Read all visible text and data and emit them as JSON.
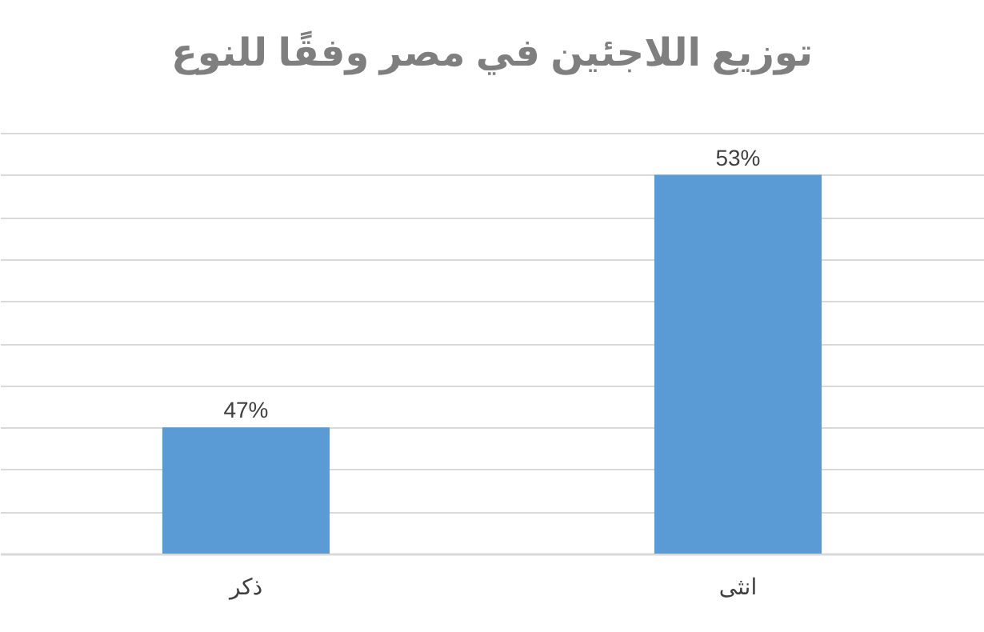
{
  "chart_data": {
    "type": "bar",
    "title": "توزيع اللاجئين في مصر وفقًا للنوع",
    "categories": [
      "ذكر",
      "انثى"
    ],
    "values": [
      47,
      53
    ],
    "value_labels": [
      "47%",
      "53%"
    ],
    "color": "#5b9bd5",
    "ylim": [
      44,
      54
    ],
    "yticks": [
      {
        "value": 44,
        "label": null
      },
      {
        "value": 45,
        "label": null
      },
      {
        "value": 46,
        "label": null
      },
      {
        "value": 47,
        "label": null
      },
      {
        "value": 48,
        "label": null
      },
      {
        "value": 49,
        "label": null
      },
      {
        "value": 50,
        "label": null
      },
      {
        "value": 51,
        "label": null
      },
      {
        "value": 52,
        "label": null
      },
      {
        "value": 53,
        "label": null
      },
      {
        "value": 54,
        "label": null
      }
    ],
    "grid": "y"
  }
}
